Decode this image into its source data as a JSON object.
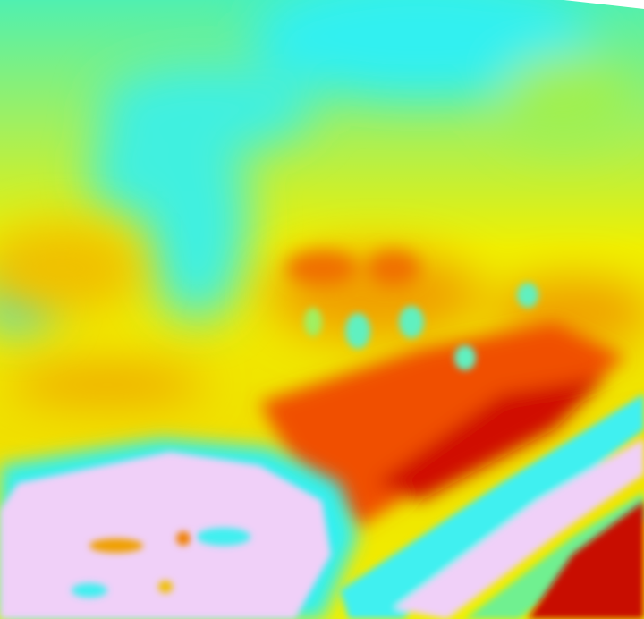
{
  "image": {
    "kind": "false-color heatmap photo",
    "palette": {
      "cool": "#30f0f0",
      "green": "#70f090",
      "yellow": "#f0f000",
      "orange": "#f0a000",
      "red": "#e02000",
      "deep_red": "#c00000",
      "lavender": "#f0d0f8"
    }
  }
}
